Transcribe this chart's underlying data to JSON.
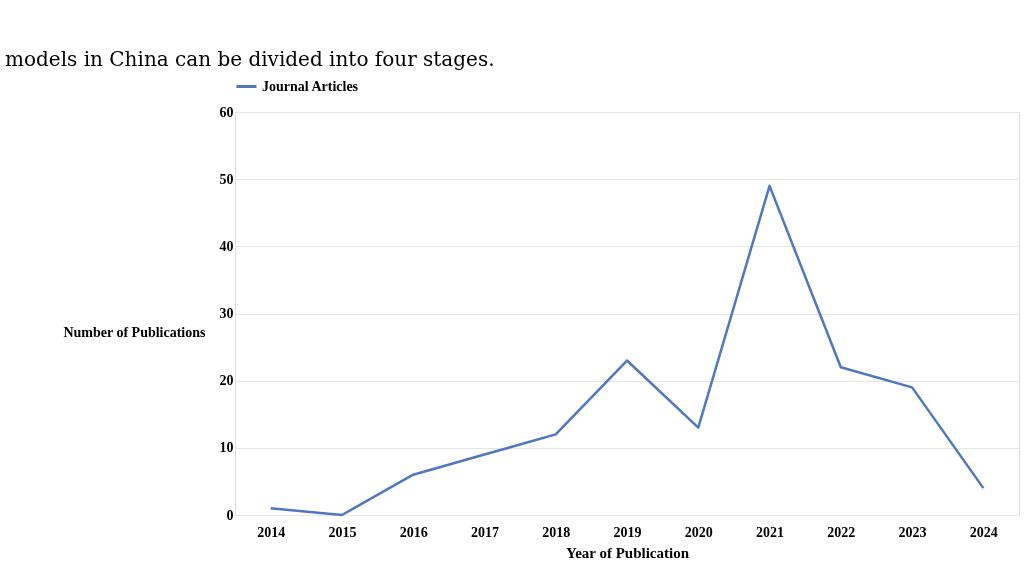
{
  "chart_data": {
    "type": "line",
    "xlabel": "Year of Publication",
    "ylabel": "Number of Publications",
    "categories": [
      "2014",
      "2015",
      "2016",
      "2017",
      "2018",
      "2019",
      "2020",
      "2021",
      "2022",
      "2023",
      "2024"
    ],
    "series": [
      {
        "name": "Journal Articles",
        "color": "#4f77c4",
        "values": [
          1,
          0,
          6,
          9,
          12,
          23,
          13,
          49,
          22,
          19,
          4
        ]
      }
    ],
    "ylim": [
      0,
      60
    ],
    "yticks": [
      0,
      10,
      20,
      30,
      40,
      50,
      60
    ],
    "grid": "y",
    "legend": "top",
    "marker": "none",
    "line_style": "solid",
    "annotations": [
      "models in China can be divided into four stages."
    ]
  }
}
